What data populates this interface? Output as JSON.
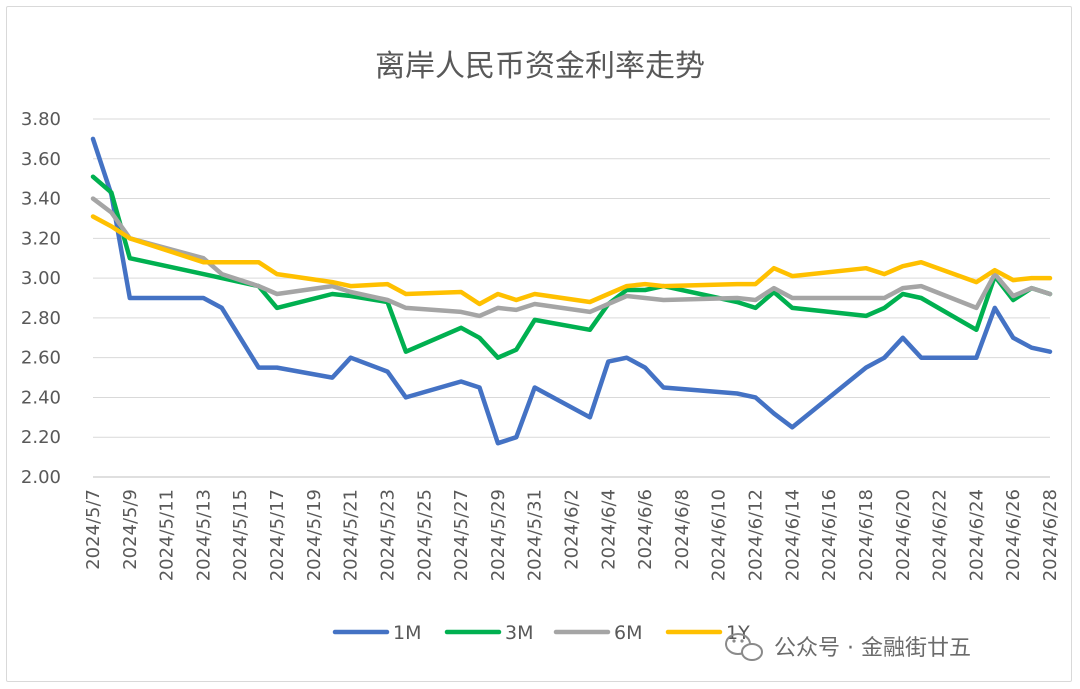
{
  "chart_data": {
    "type": "line",
    "title": "离岸人民币资金利率走势",
    "ylim": [
      2.0,
      3.8
    ],
    "yticks": [
      "3.80",
      "3.60",
      "3.40",
      "3.20",
      "3.00",
      "2.80",
      "2.60",
      "2.40",
      "2.20",
      "2.00"
    ],
    "xtick_labels": [
      "2024/5/7",
      "2024/5/9",
      "2024/5/11",
      "2024/5/13",
      "2024/5/15",
      "2024/5/17",
      "2024/5/19",
      "2024/5/21",
      "2024/5/23",
      "2024/5/25",
      "2024/5/27",
      "2024/5/29",
      "2024/5/31",
      "2024/6/2",
      "2024/6/4",
      "2024/6/6",
      "2024/6/8",
      "2024/6/10",
      "2024/6/12",
      "2024/6/14",
      "2024/6/16",
      "2024/6/18",
      "2024/6/20",
      "2024/6/22",
      "2024/6/24",
      "2024/6/26",
      "2024/6/28"
    ],
    "x": [
      "2024-05-07",
      "2024-05-08",
      "2024-05-09",
      "2024-05-13",
      "2024-05-14",
      "2024-05-16",
      "2024-05-17",
      "2024-05-20",
      "2024-05-21",
      "2024-05-23",
      "2024-05-24",
      "2024-05-27",
      "2024-05-28",
      "2024-05-29",
      "2024-05-30",
      "2024-05-31",
      "2024-06-03",
      "2024-06-04",
      "2024-06-05",
      "2024-06-06",
      "2024-06-07",
      "2024-06-11",
      "2024-06-12",
      "2024-06-13",
      "2024-06-14",
      "2024-06-18",
      "2024-06-19",
      "2024-06-20",
      "2024-06-21",
      "2024-06-24",
      "2024-06-25",
      "2024-06-26",
      "2024-06-27",
      "2024-06-28"
    ],
    "series": [
      {
        "name": "1M",
        "color": "#4472c4",
        "values": [
          3.7,
          3.42,
          2.9,
          2.9,
          2.85,
          2.55,
          2.55,
          2.5,
          2.6,
          2.53,
          2.4,
          2.48,
          2.45,
          2.17,
          2.2,
          2.45,
          2.3,
          2.58,
          2.6,
          2.55,
          2.45,
          2.42,
          2.4,
          2.32,
          2.25,
          2.55,
          2.6,
          2.7,
          2.6,
          2.6,
          2.85,
          2.7,
          2.65,
          2.63
        ]
      },
      {
        "name": "3M",
        "color": "#00b050",
        "values": [
          3.51,
          3.43,
          3.1,
          3.02,
          3.0,
          2.96,
          2.85,
          2.92,
          2.91,
          2.88,
          2.63,
          2.75,
          2.7,
          2.6,
          2.64,
          2.79,
          2.74,
          2.87,
          2.94,
          2.94,
          2.96,
          2.88,
          2.85,
          2.93,
          2.85,
          2.81,
          2.85,
          2.92,
          2.9,
          2.74,
          3.01,
          2.89,
          2.95,
          2.92
        ]
      },
      {
        "name": "6M",
        "color": "#a5a5a5",
        "values": [
          3.4,
          3.33,
          3.2,
          3.1,
          3.02,
          2.96,
          2.92,
          2.96,
          2.93,
          2.89,
          2.85,
          2.83,
          2.81,
          2.85,
          2.84,
          2.87,
          2.83,
          2.87,
          2.91,
          2.9,
          2.89,
          2.9,
          2.89,
          2.95,
          2.9,
          2.9,
          2.9,
          2.95,
          2.96,
          2.85,
          3.02,
          2.91,
          2.95,
          2.92
        ]
      },
      {
        "name": "1Y",
        "color": "#ffc000",
        "values": [
          3.31,
          3.26,
          3.2,
          3.08,
          3.08,
          3.08,
          3.02,
          2.98,
          2.96,
          2.97,
          2.92,
          2.93,
          2.87,
          2.92,
          2.89,
          2.92,
          2.88,
          2.92,
          2.96,
          2.97,
          2.96,
          2.97,
          2.97,
          3.05,
          3.01,
          3.05,
          3.02,
          3.06,
          3.08,
          2.98,
          3.04,
          2.99,
          3.0,
          3.0
        ]
      }
    ],
    "grid": true,
    "legend": "bottom"
  },
  "watermark": {
    "text": "公众号 · 金融街廿五",
    "icon": "wechat-icon"
  }
}
